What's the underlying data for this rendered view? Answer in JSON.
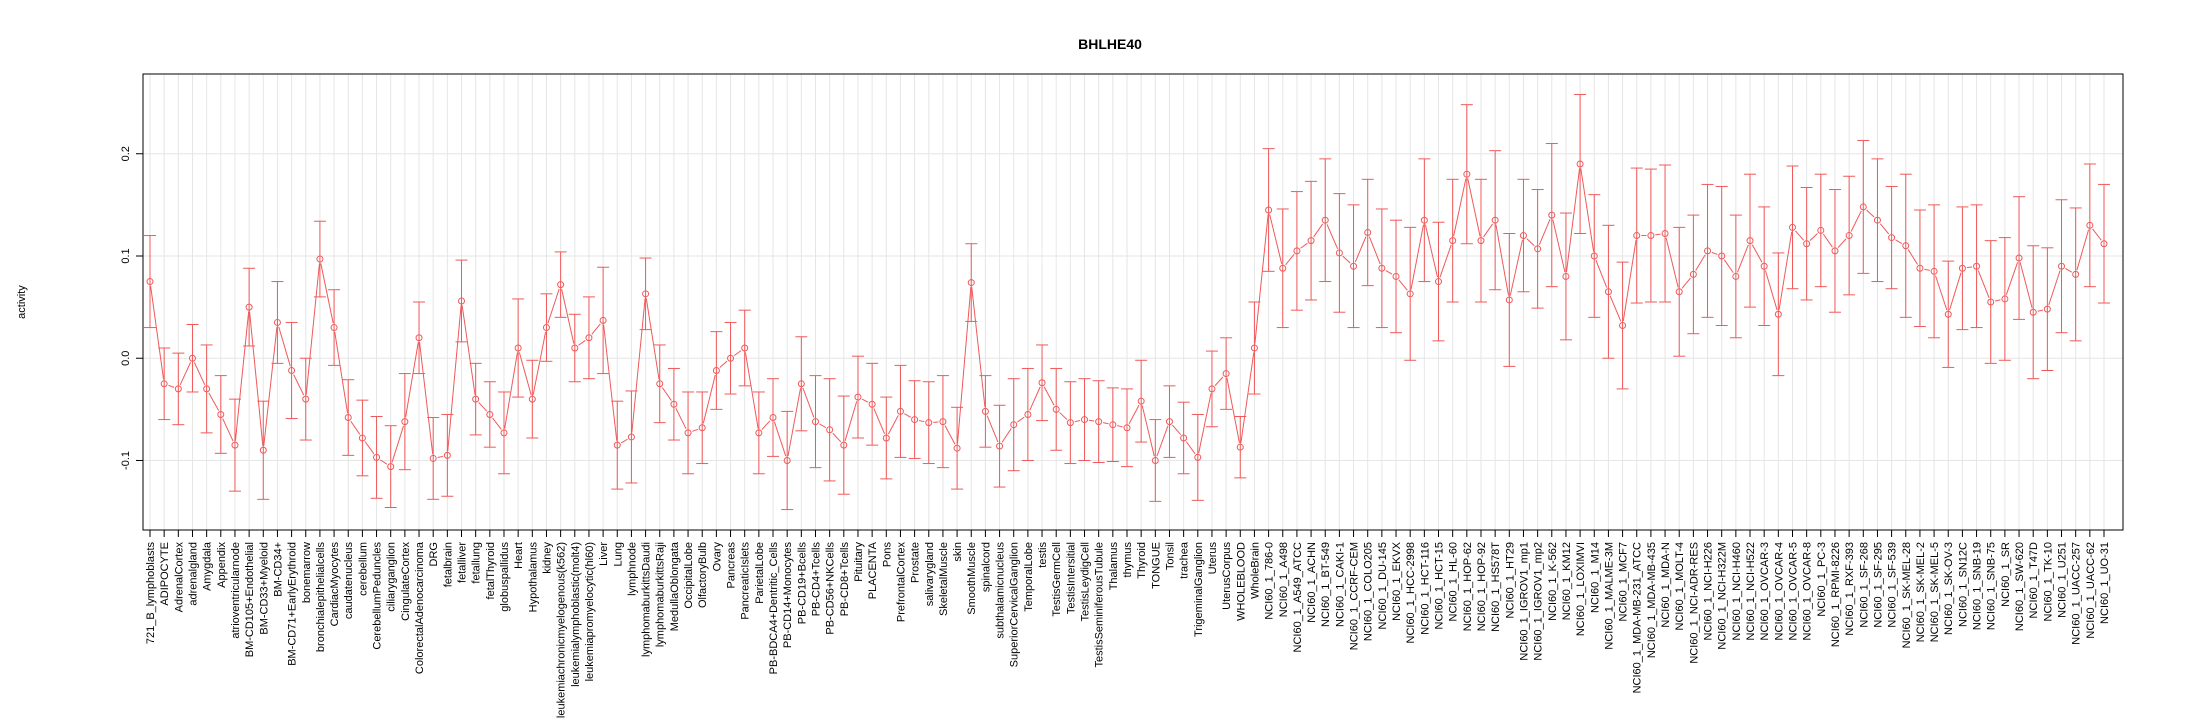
{
  "chart_data": {
    "type": "line",
    "title": "BHLHE40",
    "xlabel": "",
    "ylabel": "activity",
    "ylim": [
      -0.168,
      0.278
    ],
    "yticks": [
      -0.1,
      0.0,
      0.1,
      0.2
    ],
    "ytick_labels": [
      "-0.1",
      "0.0",
      "0.1",
      "0.2"
    ],
    "grid": true,
    "series_color": "#F0595A",
    "grid_color": "#E6E6E6",
    "categories": [
      "721_B_lymphoblasts",
      "ADIPOCYTE",
      "AdrenalCortex",
      "adrenalgland",
      "Amygdala",
      "Appendix",
      "atrioventricularnode",
      "BM-CD105+Endothelial",
      "BM-CD33+Myeloid",
      "BM-CD34+",
      "BM-CD71+EarlyErythroid",
      "bonemarrow",
      "bronchialepithelialcells",
      "CardiacMyocytes",
      "caudatenucleus",
      "cerebellum",
      "CerebellumPeduncles",
      "ciliaryganglion",
      "CingulateCortex",
      "ColorectalAdenocarcinoma",
      "DRG",
      "fetalbrain",
      "fetalliver",
      "fetallung",
      "fetalThyroid",
      "globuspallidus",
      "Heart",
      "Hypothalamus",
      "kidney",
      "leukemiachronicmyelogenous(k562)",
      "leukemialymphoblastic(molt4)",
      "leukemiapromyelocytic(hl60)",
      "Liver",
      "Lung",
      "lymphnode",
      "lymphomaburkittsDaudi",
      "lymphomaburkittsRaji",
      "MedullaOblongata",
      "OccipitalLobe",
      "OlfactoryBulb",
      "Ovary",
      "Pancreas",
      "PancreaticIslets",
      "ParietalLobe",
      "PB-BDCA4+Dentritic_Cells",
      "PB-CD14+Monocytes",
      "PB-CD19+Bcells",
      "PB-CD4+Tcells",
      "PB-CD56+NKCells",
      "PB-CD8+Tcells",
      "Pituitary",
      "PLACENTA",
      "Pons",
      "PrefrontalCortex",
      "Prostate",
      "salivarygland",
      "SkeletalMuscle",
      "skin",
      "SmoothMuscle",
      "spinalcord",
      "subthalamicnucleus",
      "SuperiorCervicalGanglion",
      "TemporalLobe",
      "testis",
      "TestisGermCell",
      "TestisIntersitial",
      "TestisLeydigCell",
      "TestisSeminiferousTubule",
      "Thalamus",
      "thymus",
      "Thyroid",
      "TONGUE",
      "Tonsil",
      "trachea",
      "TrigeminalGanglion",
      "Uterus",
      "UterusCorpus",
      "WHOLEBLOOD",
      "WholeBrain",
      "NCI60_1_786-0",
      "NCI60_1_A498",
      "NCI60_1_A549_ATCC",
      "NCI60_1_ACHN",
      "NCI60_1_BT-549",
      "NCI60_1_CAKI-1",
      "NCI60_1_CCRF-CEM",
      "NCI60_1_COLO205",
      "NCI60_1_DU-145",
      "NCI60_1_EKVX",
      "NCI60_1_HCC-2998",
      "NCI60_1_HCT-116",
      "NCI60_1_HCT-15",
      "NCI60_1_HL-60",
      "NCI60_1_HOP-62",
      "NCI60_1_HOP-92",
      "NCI60_1_HS578T",
      "NCI60_1_HT29",
      "NCI60_1_IGROV1_mp1",
      "NCI60_1_IGROV1_mp2",
      "NCI60_1_K-562",
      "NCI60_1_KM12",
      "NCI60_1_LOXIMVI",
      "NCI60_1_M14",
      "NCI60_1_MALME-3M",
      "NCI60_1_MCF7",
      "NCI60_1_MDA-MB-231_ATCC",
      "NCI60_1_MDA-MB-435",
      "NCI60_1_MDA-N",
      "NCI60_1_MOLT-4",
      "NCI60_1_NCI-ADR-RES",
      "NCI60_1_NCI-H226",
      "NCI60_1_NCI-H322M",
      "NCI60_1_NCI-H460",
      "NCI60_1_NCI-H522",
      "NCI60_1_OVCAR-3",
      "NCI60_1_OVCAR-4",
      "NCI60_1_OVCAR-5",
      "NCI60_1_OVCAR-8",
      "NCI60_1_PC-3",
      "NCI60_1_RPMI-8226",
      "NCI60_1_RXF-393",
      "NCI60_1_SF-268",
      "NCI60_1_SF-295",
      "NCI60_1_SF-539",
      "NCI60_1_SK-MEL-28",
      "NCI60_1_SK-MEL-2",
      "NCI60_1_SK-MEL-5",
      "NCI60_1_SK-OV-3",
      "NCI60_1_SN12C",
      "NCI60_1_SNB-19",
      "NCI60_1_SNB-75",
      "NCI60_1_SR",
      "NCI60_1_SW-620",
      "NCI60_1_T47D",
      "NCI60_1_TK-10",
      "NCI60_1_U251",
      "NCI60_1_UACC-257",
      "NCI60_1_UACC-62",
      "NCI60_1_UO-31"
    ],
    "values": [
      0.075,
      -0.025,
      -0.03,
      0.0,
      -0.03,
      -0.055,
      -0.085,
      0.05,
      -0.09,
      0.035,
      -0.012,
      -0.04,
      0.097,
      0.03,
      -0.058,
      -0.078,
      -0.097,
      -0.106,
      -0.062,
      0.02,
      -0.098,
      -0.095,
      0.056,
      -0.04,
      -0.055,
      -0.073,
      0.01,
      -0.04,
      0.03,
      0.072,
      0.01,
      0.02,
      0.037,
      -0.085,
      -0.077,
      0.063,
      -0.025,
      -0.045,
      -0.073,
      -0.068,
      -0.012,
      0.0,
      0.01,
      -0.073,
      -0.058,
      -0.1,
      -0.025,
      -0.062,
      -0.07,
      -0.085,
      -0.038,
      -0.045,
      -0.078,
      -0.052,
      -0.06,
      -0.063,
      -0.062,
      -0.088,
      0.074,
      -0.052,
      -0.086,
      -0.065,
      -0.055,
      -0.024,
      -0.05,
      -0.063,
      -0.06,
      -0.062,
      -0.065,
      -0.068,
      -0.042,
      -0.1,
      -0.062,
      -0.078,
      -0.097,
      -0.03,
      -0.015,
      -0.087,
      0.01,
      0.145,
      0.088,
      0.105,
      0.115,
      0.135,
      0.103,
      0.09,
      0.123,
      0.088,
      0.08,
      0.063,
      0.135,
      0.075,
      0.115,
      0.18,
      0.115,
      0.135,
      0.057,
      0.12,
      0.107,
      0.14,
      0.08,
      0.19,
      0.1,
      0.065,
      0.032,
      0.12,
      0.12,
      0.122,
      0.065,
      0.082,
      0.105,
      0.1,
      0.08,
      0.115,
      0.09,
      0.043,
      0.128,
      0.112,
      0.125,
      0.105,
      0.12,
      0.148,
      0.135,
      0.118,
      0.11,
      0.088,
      0.085,
      0.043,
      0.088,
      0.09,
      0.055,
      0.058,
      0.098,
      0.045,
      0.048,
      0.09,
      0.082,
      0.13,
      0.112
    ],
    "errors": [
      0.045,
      0.035,
      0.035,
      0.033,
      0.043,
      0.038,
      0.045,
      0.038,
      0.048,
      0.04,
      0.047,
      0.04,
      0.037,
      0.037,
      0.037,
      0.037,
      0.04,
      0.04,
      0.047,
      0.035,
      0.04,
      0.04,
      0.04,
      0.035,
      0.032,
      0.04,
      0.048,
      0.038,
      0.033,
      0.032,
      0.033,
      0.04,
      0.052,
      0.043,
      0.045,
      0.035,
      0.038,
      0.035,
      0.04,
      0.035,
      0.038,
      0.035,
      0.037,
      0.04,
      0.038,
      0.048,
      0.046,
      0.045,
      0.05,
      0.048,
      0.04,
      0.04,
      0.04,
      0.045,
      0.038,
      0.04,
      0.045,
      0.04,
      0.038,
      0.035,
      0.04,
      0.045,
      0.045,
      0.037,
      0.04,
      0.04,
      0.04,
      0.04,
      0.036,
      0.038,
      0.04,
      0.04,
      0.035,
      0.035,
      0.042,
      0.037,
      0.035,
      0.03,
      0.045,
      0.06,
      0.058,
      0.058,
      0.058,
      0.06,
      0.058,
      0.06,
      0.052,
      0.058,
      0.055,
      0.065,
      0.06,
      0.058,
      0.06,
      0.068,
      0.06,
      0.068,
      0.065,
      0.055,
      0.058,
      0.07,
      0.062,
      0.068,
      0.06,
      0.065,
      0.062,
      0.066,
      0.065,
      0.067,
      0.063,
      0.058,
      0.065,
      0.068,
      0.06,
      0.065,
      0.058,
      0.06,
      0.06,
      0.055,
      0.055,
      0.06,
      0.058,
      0.065,
      0.06,
      0.05,
      0.07,
      0.057,
      0.065,
      0.052,
      0.06,
      0.06,
      0.06,
      0.06,
      0.06,
      0.065,
      0.06,
      0.065,
      0.065,
      0.06,
      0.058
    ]
  }
}
